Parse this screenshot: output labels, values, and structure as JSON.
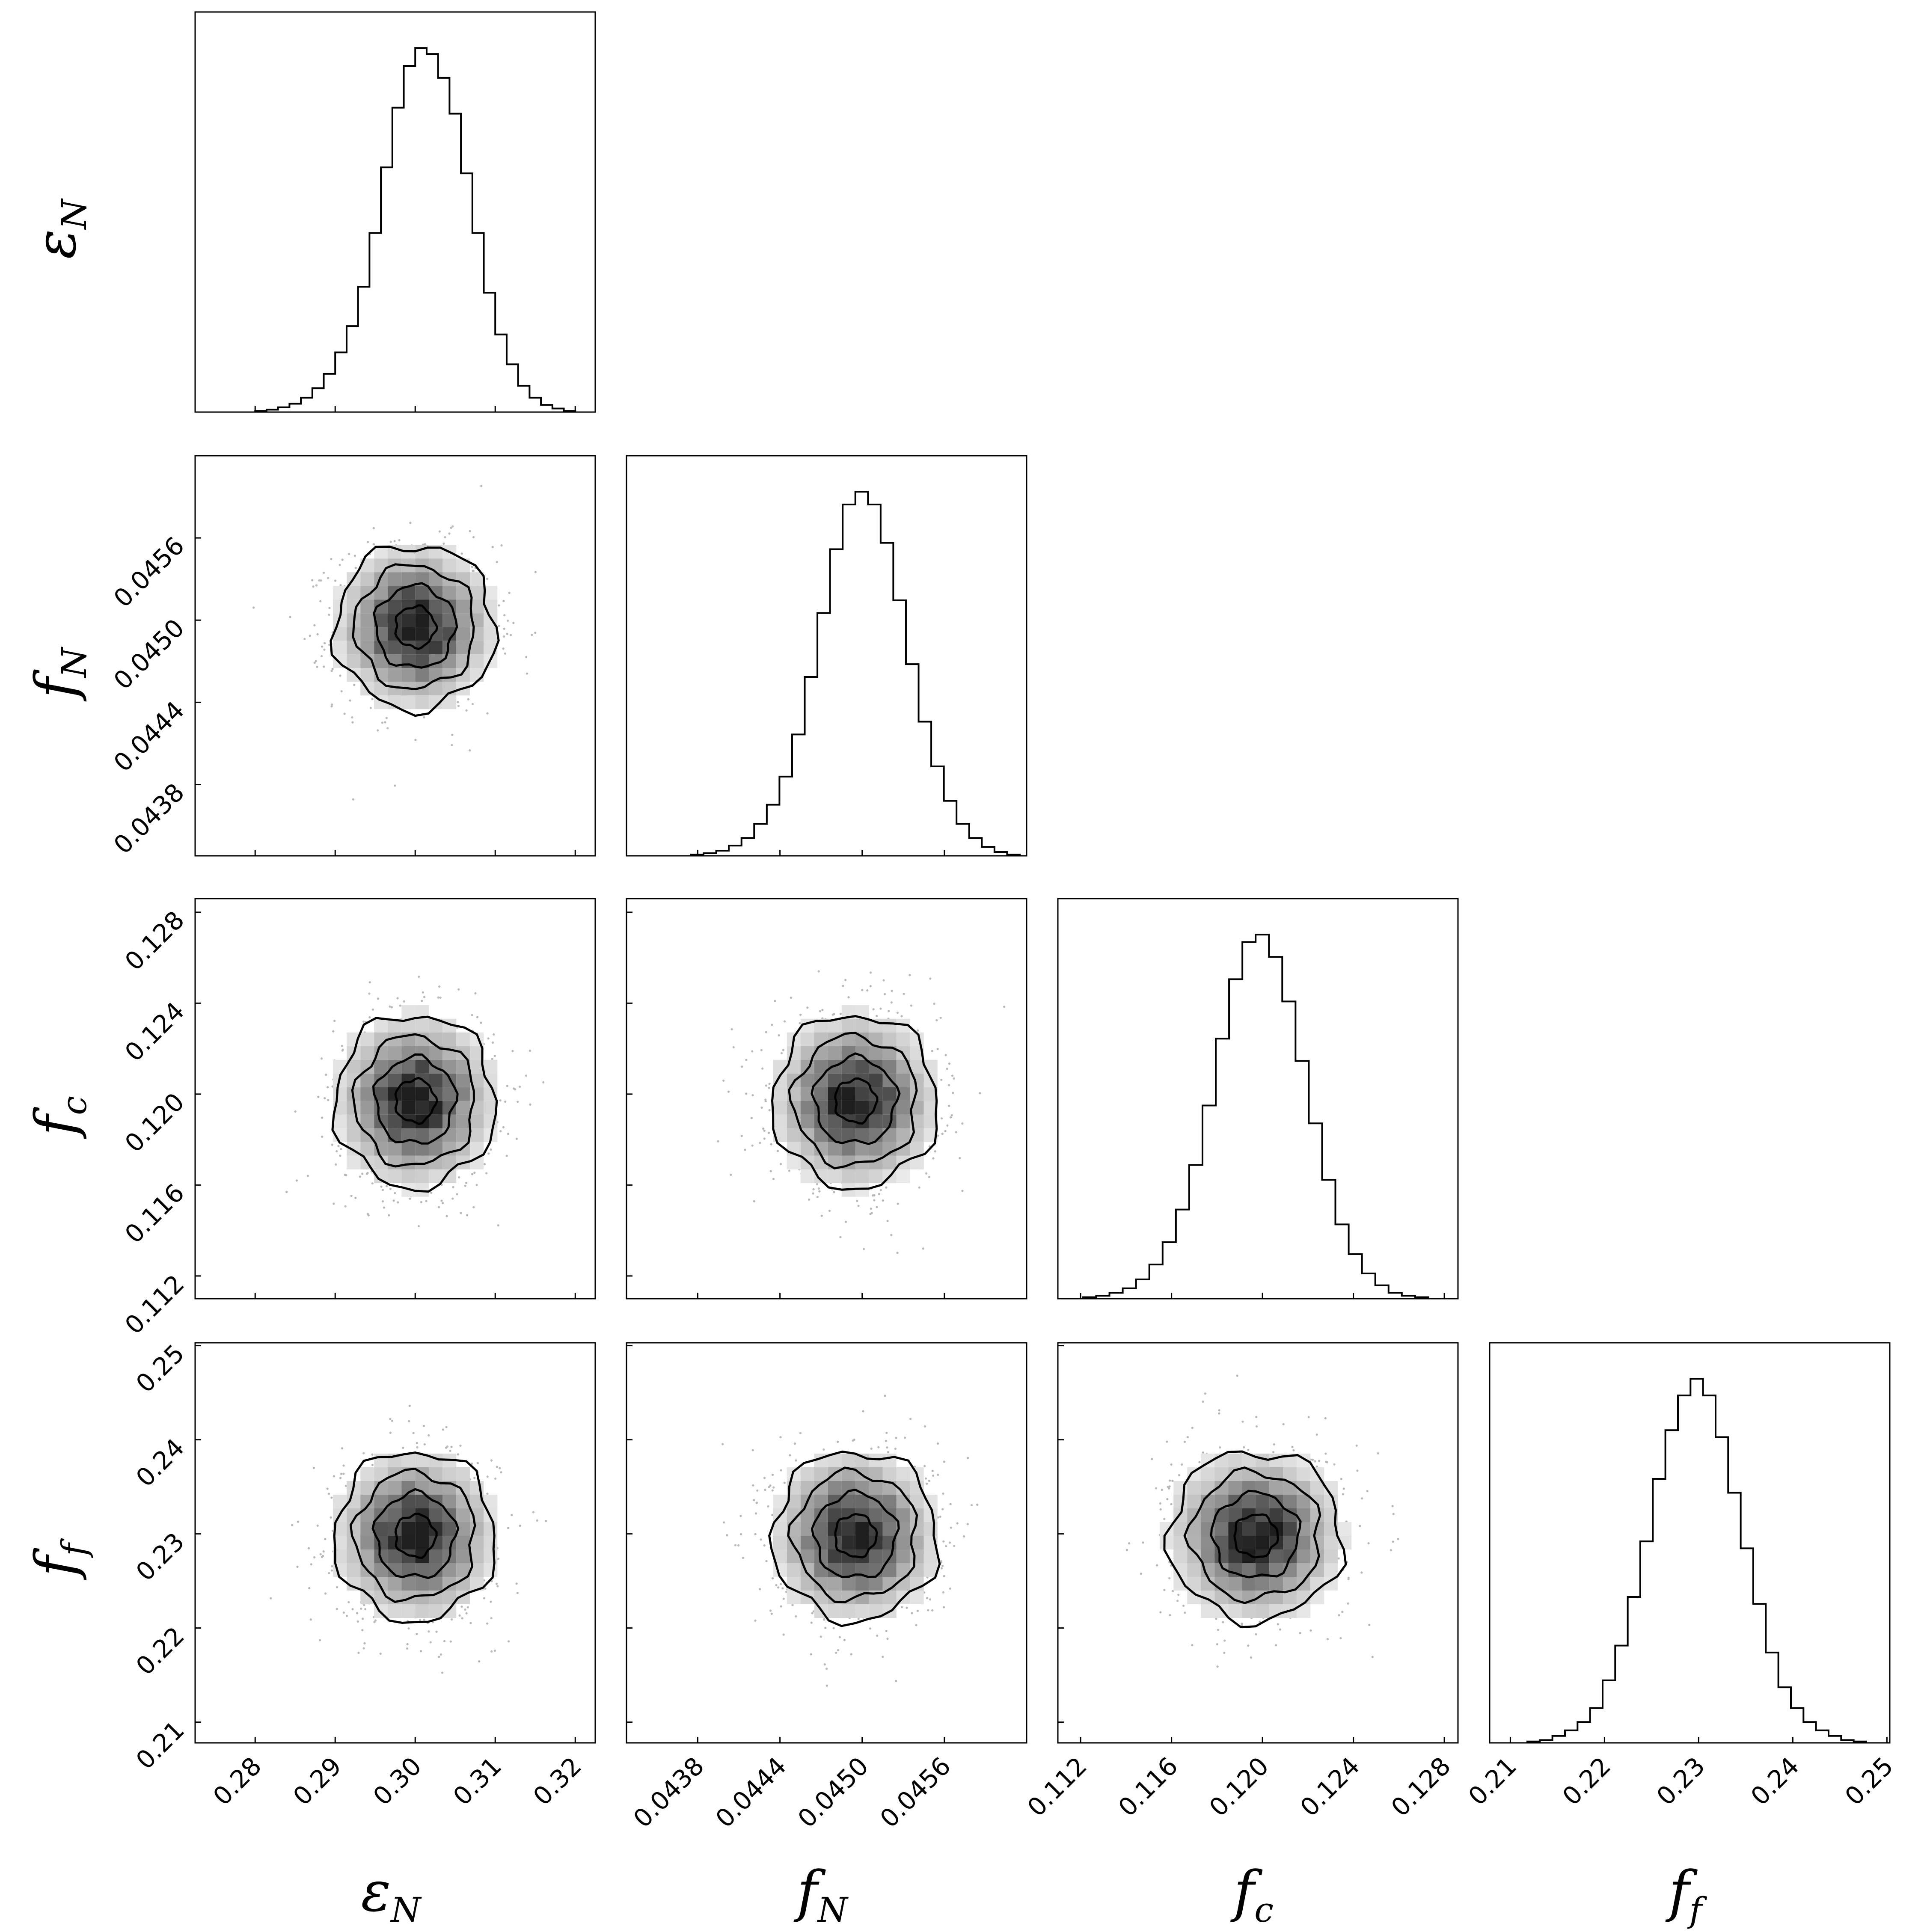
{
  "chart_data": {
    "type": "corner",
    "parameters": [
      {
        "symbol": "ε",
        "subscript": "N",
        "range": [
          0.2725,
          0.3225
        ],
        "ticks": [
          "0.28",
          "0.29",
          "0.30",
          "0.31",
          "0.32"
        ],
        "tick_values": [
          0.28,
          0.29,
          0.3,
          0.31,
          0.32
        ],
        "mean": 0.3,
        "sigma": 0.005
      },
      {
        "symbol": "f",
        "subscript": "N",
        "range": [
          0.04328,
          0.0462
        ],
        "ticks": [
          "0.0438",
          "0.0444",
          "0.0450",
          "0.0456"
        ],
        "tick_values": [
          0.0438,
          0.0444,
          0.045,
          0.0456
        ],
        "mean": 0.04495,
        "sigma": 0.0003
      },
      {
        "symbol": "f",
        "subscript": "c",
        "range": [
          0.111,
          0.1286
        ],
        "ticks": [
          "0.112",
          "0.116",
          "0.120",
          "0.124",
          "0.128"
        ],
        "tick_values": [
          0.112,
          0.116,
          0.12,
          0.124,
          0.128
        ],
        "mean": 0.1197,
        "sigma": 0.0019
      },
      {
        "symbol": "f",
        "subscript": "f",
        "range": [
          0.2078,
          0.2503
        ],
        "ticks": [
          "0.21",
          "0.22",
          "0.23",
          "0.24",
          "0.25"
        ],
        "tick_values": [
          0.21,
          0.22,
          0.23,
          0.24,
          0.25
        ],
        "mean": 0.2298,
        "sigma": 0.0045
      }
    ],
    "histograms": [
      {
        "param": 0,
        "bin_counts": [
          1,
          2,
          4,
          7,
          12,
          20,
          32,
          50,
          72,
          105,
          150,
          205,
          255,
          290,
          305,
          300,
          280,
          250,
          200,
          150,
          100,
          65,
          40,
          22,
          12,
          6,
          3,
          1
        ]
      },
      {
        "param": 1,
        "bin_counts": [
          1,
          2,
          4,
          8,
          14,
          25,
          40,
          62,
          95,
          140,
          190,
          240,
          275,
          285,
          275,
          245,
          200,
          150,
          105,
          70,
          43,
          25,
          14,
          7,
          3,
          1
        ]
      },
      {
        "param": 2,
        "bin_counts": [
          1,
          2,
          4,
          7,
          13,
          23,
          38,
          60,
          90,
          130,
          175,
          215,
          240,
          245,
          230,
          200,
          160,
          118,
          80,
          50,
          30,
          17,
          9,
          4,
          2,
          1
        ]
      },
      {
        "param": 3,
        "bin_counts": [
          1,
          2,
          5,
          9,
          15,
          25,
          45,
          70,
          105,
          145,
          190,
          225,
          250,
          262,
          250,
          220,
          180,
          140,
          100,
          65,
          40,
          25,
          15,
          9,
          5,
          2,
          1
        ]
      }
    ],
    "pairs": [
      {
        "x": 0,
        "y": 1
      },
      {
        "x": 0,
        "y": 2
      },
      {
        "x": 1,
        "y": 2
      },
      {
        "x": 0,
        "y": 3
      },
      {
        "x": 1,
        "y": 3
      },
      {
        "x": 2,
        "y": 3
      }
    ],
    "contour_levels_sigma": [
      0.5,
      1.0,
      1.5,
      2.0
    ],
    "axis_labels": [
      "εN",
      "fN",
      "fc",
      "ff"
    ]
  }
}
